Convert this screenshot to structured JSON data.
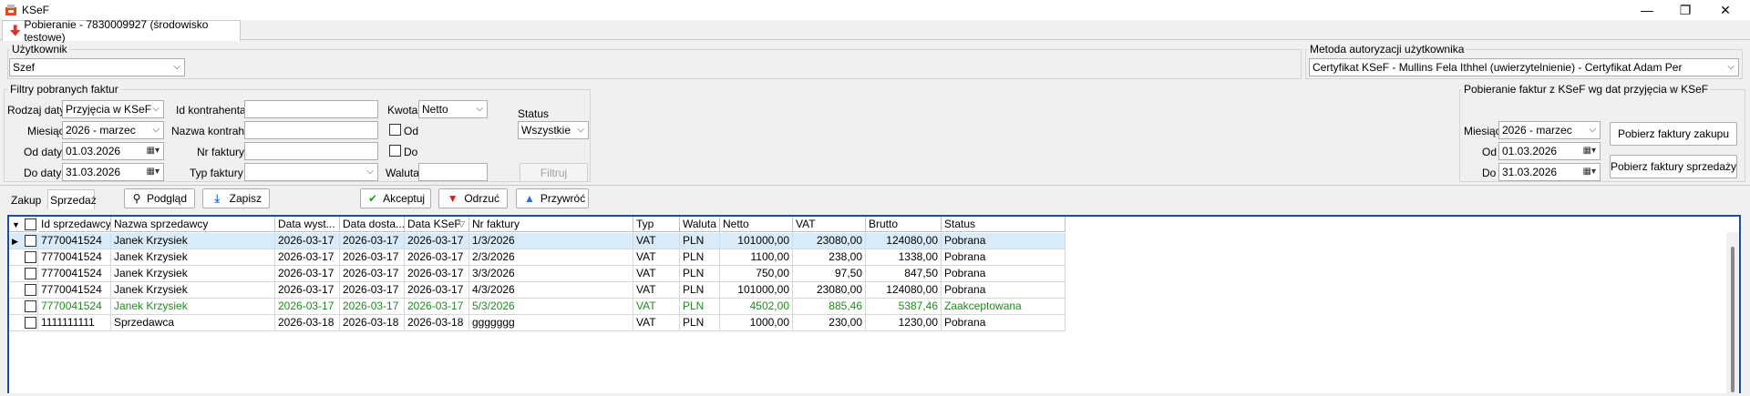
{
  "window": {
    "title": "KSeF"
  },
  "doc_tab": {
    "label": "Pobieranie - 7830009927 (środowisko testowe)"
  },
  "user_group": {
    "title": "Użytkownik",
    "value": "Szef"
  },
  "auth_group": {
    "title": "Metoda autoryzacji użytkownika",
    "value": "Certyfikat KSeF - Mullins Fela Ithhel (uwierzytelnienie) - Certyfikat Adam Per"
  },
  "filters": {
    "title": "Filtry pobranych faktur",
    "rodzaj_daty_label": "Rodzaj daty",
    "rodzaj_daty_value": "Przyjęcia w KSeF",
    "miesiac_label": "Miesiąc",
    "miesiac_value": "2026 - marzec",
    "od_daty_label": "Od daty",
    "od_daty_value": "01.03.2026",
    "do_daty_label": "Do daty",
    "do_daty_value": "31.03.2026",
    "id_kontrahenta_label": "Id kontrahenta",
    "id_kontrahenta_value": "",
    "nazwa_kontrah_label": "Nazwa kontrah.",
    "nazwa_kontrah_value": "",
    "nr_faktury_label": "Nr faktury",
    "nr_faktury_value": "",
    "typ_faktury_label": "Typ faktury",
    "typ_faktury_value": "",
    "kwota_label": "Kwota",
    "kwota_value": "Netto",
    "od_label": "Od",
    "do_label": "Do",
    "waluta_label": "Waluta",
    "waluta_value": "",
    "status_label": "Status",
    "status_value": "Wszystkie",
    "filtruj_label": "Filtruj"
  },
  "fetch": {
    "title": "Pobieranie faktur z KSeF wg dat przyjęcia w KSeF",
    "miesiac_label": "Miesiąc",
    "miesiac_value": "2026 - marzec",
    "od_label": "Od",
    "od_value": "01.03.2026",
    "do_label": "Do",
    "do_value": "31.03.2026",
    "buy_button": "Pobierz faktury zakupu",
    "sell_button": "Pobierz faktury sprzedaży"
  },
  "tabs": {
    "zakup": "Zakup",
    "sprzedaz": "Sprzedaż"
  },
  "toolbar": {
    "podglad": "Podgląd",
    "zapisz": "Zapisz",
    "akceptuj": "Akceptuj",
    "odrzuc": "Odrzuć",
    "przywroc": "Przywróć"
  },
  "grid": {
    "headers": [
      "Id sprzedawcy",
      "Nazwa sprzedawcy",
      "Data wyst...",
      "Data dosta...",
      "Data KSeF",
      "Nr faktury",
      "Typ",
      "Waluta",
      "Netto",
      "VAT",
      "Brutto",
      "Status"
    ],
    "rows": [
      [
        "7770041524",
        "Janek Krzysiek",
        "2026-03-17",
        "2026-03-17",
        "2026-03-17",
        "1/3/2026",
        "VAT",
        "PLN",
        "101000,00",
        "23080,00",
        "124080,00",
        "Pobrana"
      ],
      [
        "7770041524",
        "Janek Krzysiek",
        "2026-03-17",
        "2026-03-17",
        "2026-03-17",
        "2/3/2026",
        "VAT",
        "PLN",
        "1100,00",
        "238,00",
        "1338,00",
        "Pobrana"
      ],
      [
        "7770041524",
        "Janek Krzysiek",
        "2026-03-17",
        "2026-03-17",
        "2026-03-17",
        "3/3/2026",
        "VAT",
        "PLN",
        "750,00",
        "97,50",
        "847,50",
        "Pobrana"
      ],
      [
        "7770041524",
        "Janek Krzysiek",
        "2026-03-17",
        "2026-03-17",
        "2026-03-17",
        "4/3/2026",
        "VAT",
        "PLN",
        "101000,00",
        "23080,00",
        "124080,00",
        "Pobrana"
      ],
      [
        "7770041524",
        "Janek Krzysiek",
        "2026-03-17",
        "2026-03-17",
        "2026-03-17",
        "5/3/2026",
        "VAT",
        "PLN",
        "4502,00",
        "885,46",
        "5387,46",
        "Zaakceptowana"
      ],
      [
        "1111111111",
        "Sprzedawca",
        "2026-03-18",
        "2026-03-18",
        "2026-03-18",
        "ggggggg",
        "VAT",
        "PLN",
        "1000,00",
        "230,00",
        "1230,00",
        "Pobrana"
      ]
    ]
  },
  "colors": {
    "accepted_text": "#1f8a1f",
    "selected_row": "#d9eaf9",
    "grid_border": "#1b4f9c"
  }
}
